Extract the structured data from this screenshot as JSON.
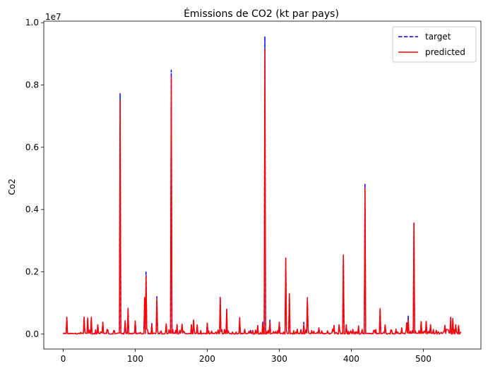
{
  "chart_data": {
    "type": "line",
    "title": "Émissions de CO2 (kt par pays)",
    "xlabel": "",
    "ylabel": "Co2",
    "y_offset_text": "1e7",
    "xlim": [
      -27,
      580
    ],
    "ylim": [
      -480000,
      10050000
    ],
    "x_ticks": [
      0,
      100,
      200,
      300,
      400,
      500
    ],
    "y_ticks": [
      0,
      2000000,
      4000000,
      6000000,
      8000000,
      10000000
    ],
    "y_tick_labels": [
      "0.0",
      "0.2",
      "0.4",
      "0.6",
      "0.8",
      "1.0"
    ],
    "x_count": 553,
    "grid": false,
    "legend_position": "top-right",
    "series": [
      {
        "name": "target",
        "color": "#0000ff",
        "style": "dashed",
        "peaks": [
          [
            5,
            540000
          ],
          [
            29,
            550000
          ],
          [
            34,
            520000
          ],
          [
            39,
            540000
          ],
          [
            48,
            300000
          ],
          [
            55,
            380000
          ],
          [
            79,
            7720000
          ],
          [
            86,
            430000
          ],
          [
            90,
            830000
          ],
          [
            100,
            420000
          ],
          [
            113,
            1200000
          ],
          [
            115,
            1990000
          ],
          [
            123,
            340000
          ],
          [
            130,
            1200000
          ],
          [
            143,
            330000
          ],
          [
            150,
            8480000
          ],
          [
            158,
            310000
          ],
          [
            165,
            320000
          ],
          [
            178,
            300000
          ],
          [
            181,
            450000
          ],
          [
            186,
            300000
          ],
          [
            200,
            350000
          ],
          [
            218,
            1180000
          ],
          [
            227,
            800000
          ],
          [
            245,
            530000
          ],
          [
            260,
            120000
          ],
          [
            270,
            280000
          ],
          [
            277,
            400000
          ],
          [
            280,
            9560000
          ],
          [
            287,
            450000
          ],
          [
            300,
            380000
          ],
          [
            309,
            2440000
          ],
          [
            314,
            1300000
          ],
          [
            334,
            380000
          ],
          [
            339,
            1170000
          ],
          [
            355,
            200000
          ],
          [
            376,
            280000
          ],
          [
            383,
            300000
          ],
          [
            389,
            2540000
          ],
          [
            393,
            300000
          ],
          [
            410,
            260000
          ],
          [
            419,
            4830000
          ],
          [
            440,
            820000
          ],
          [
            447,
            300000
          ],
          [
            462,
            160000
          ],
          [
            470,
            200000
          ],
          [
            477,
            400000
          ],
          [
            479,
            580000
          ],
          [
            487,
            3560000
          ],
          [
            497,
            400000
          ],
          [
            504,
            410000
          ],
          [
            510,
            300000
          ],
          [
            530,
            280000
          ],
          [
            538,
            540000
          ],
          [
            541,
            500000
          ],
          [
            545,
            300000
          ],
          [
            549,
            280000
          ]
        ]
      },
      {
        "name": "predicted",
        "color": "#ff0000",
        "style": "solid",
        "peaks": [
          [
            5,
            540000
          ],
          [
            29,
            550000
          ],
          [
            34,
            520000
          ],
          [
            39,
            540000
          ],
          [
            48,
            300000
          ],
          [
            55,
            380000
          ],
          [
            79,
            7500000
          ],
          [
            86,
            420000
          ],
          [
            90,
            820000
          ],
          [
            100,
            420000
          ],
          [
            113,
            1180000
          ],
          [
            115,
            1860000
          ],
          [
            123,
            300000
          ],
          [
            130,
            1140000
          ],
          [
            143,
            330000
          ],
          [
            150,
            8270000
          ],
          [
            158,
            310000
          ],
          [
            165,
            320000
          ],
          [
            178,
            300000
          ],
          [
            181,
            450000
          ],
          [
            186,
            300000
          ],
          [
            200,
            350000
          ],
          [
            218,
            1170000
          ],
          [
            227,
            790000
          ],
          [
            245,
            520000
          ],
          [
            260,
            80000
          ],
          [
            270,
            270000
          ],
          [
            277,
            330000
          ],
          [
            280,
            9150000
          ],
          [
            287,
            380000
          ],
          [
            300,
            370000
          ],
          [
            309,
            2420000
          ],
          [
            314,
            1290000
          ],
          [
            334,
            300000
          ],
          [
            339,
            1150000
          ],
          [
            355,
            200000
          ],
          [
            376,
            270000
          ],
          [
            383,
            300000
          ],
          [
            389,
            2540000
          ],
          [
            393,
            300000
          ],
          [
            410,
            260000
          ],
          [
            419,
            4700000
          ],
          [
            440,
            820000
          ],
          [
            447,
            300000
          ],
          [
            462,
            150000
          ],
          [
            470,
            200000
          ],
          [
            477,
            350000
          ],
          [
            479,
            470000
          ],
          [
            487,
            3570000
          ],
          [
            497,
            400000
          ],
          [
            504,
            410000
          ],
          [
            510,
            300000
          ],
          [
            530,
            280000
          ],
          [
            538,
            540000
          ],
          [
            541,
            500000
          ],
          [
            545,
            300000
          ],
          [
            549,
            280000
          ]
        ]
      }
    ]
  }
}
